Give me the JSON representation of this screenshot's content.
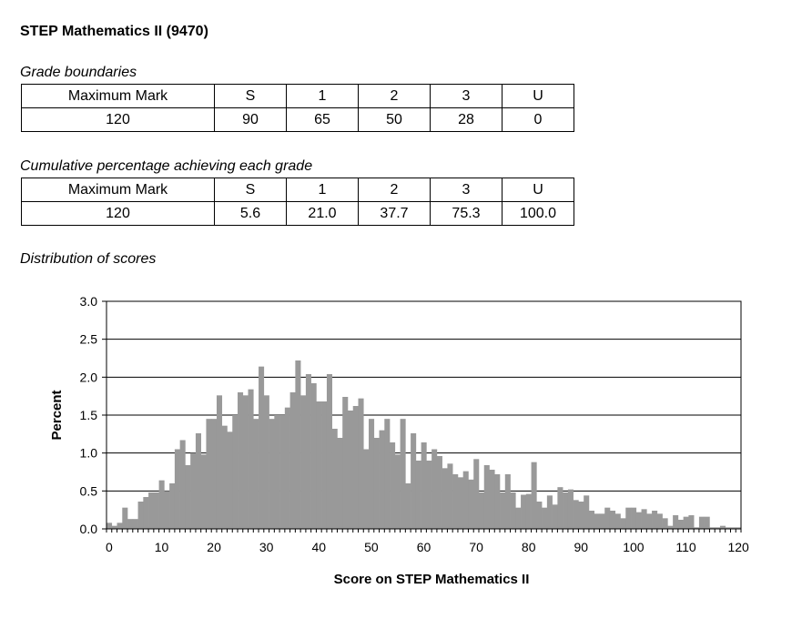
{
  "title": "STEP Mathematics II (9470)",
  "grade_boundaries": {
    "caption": "Grade boundaries",
    "header": [
      "Maximum Mark",
      "S",
      "1",
      "2",
      "3",
      "U"
    ],
    "row": [
      "120",
      "90",
      "65",
      "50",
      "28",
      "0"
    ]
  },
  "cumulative": {
    "caption": "Cumulative percentage achieving each grade",
    "header": [
      "Maximum Mark",
      "S",
      "1",
      "2",
      "3",
      "U"
    ],
    "row": [
      "120",
      "5.6",
      "21.0",
      "37.7",
      "75.3",
      "100.0"
    ]
  },
  "distribution_caption": "Distribution of scores",
  "chart_data": {
    "type": "bar",
    "title": "",
    "xlabel": "Score on STEP Mathematics II",
    "ylabel": "Percent",
    "xlim": [
      0,
      121
    ],
    "ylim": [
      0,
      3.0
    ],
    "xticks": [
      "0",
      "10",
      "20",
      "30",
      "40",
      "50",
      "60",
      "70",
      "80",
      "90",
      "100",
      "110",
      "120"
    ],
    "yticks": [
      "0.0",
      "0.5",
      "1.0",
      "1.5",
      "2.0",
      "2.5",
      "3.0"
    ],
    "grid": "horizontal",
    "bar_color": "#999999",
    "x": [
      0,
      1,
      2,
      3,
      4,
      5,
      6,
      7,
      8,
      9,
      10,
      11,
      12,
      13,
      14,
      15,
      16,
      17,
      18,
      19,
      20,
      21,
      22,
      23,
      24,
      25,
      26,
      27,
      28,
      29,
      30,
      31,
      32,
      33,
      34,
      35,
      36,
      37,
      38,
      39,
      40,
      41,
      42,
      43,
      44,
      45,
      46,
      47,
      48,
      49,
      50,
      51,
      52,
      53,
      54,
      55,
      56,
      57,
      58,
      59,
      60,
      61,
      62,
      63,
      64,
      65,
      66,
      67,
      68,
      69,
      70,
      71,
      72,
      73,
      74,
      75,
      76,
      77,
      78,
      79,
      80,
      81,
      82,
      83,
      84,
      85,
      86,
      87,
      88,
      89,
      90,
      91,
      92,
      93,
      94,
      95,
      96,
      97,
      98,
      99,
      100,
      101,
      102,
      103,
      104,
      105,
      106,
      107,
      108,
      109,
      110,
      111,
      112,
      113,
      114,
      115,
      116,
      117,
      118,
      119,
      120
    ],
    "values": [
      0.08,
      0.04,
      0.08,
      0.28,
      0.13,
      0.13,
      0.36,
      0.42,
      0.48,
      0.48,
      0.64,
      0.5,
      0.6,
      1.05,
      1.17,
      0.84,
      1.0,
      1.26,
      0.98,
      1.45,
      1.45,
      1.76,
      1.36,
      1.28,
      1.5,
      1.8,
      1.76,
      1.84,
      1.45,
      2.14,
      1.76,
      1.45,
      1.5,
      1.5,
      1.6,
      1.8,
      2.22,
      1.76,
      2.04,
      1.92,
      1.68,
      1.68,
      2.04,
      1.32,
      1.2,
      1.74,
      1.56,
      1.62,
      1.72,
      1.05,
      1.45,
      1.2,
      1.3,
      1.45,
      1.14,
      0.98,
      1.45,
      0.6,
      1.26,
      0.9,
      1.14,
      0.9,
      1.05,
      0.96,
      0.8,
      0.86,
      0.72,
      0.68,
      0.76,
      0.65,
      0.92,
      0.48,
      0.84,
      0.78,
      0.72,
      0.48,
      0.72,
      0.48,
      0.28,
      0.45,
      0.46,
      0.88,
      0.36,
      0.28,
      0.44,
      0.32,
      0.55,
      0.48,
      0.52,
      0.38,
      0.36,
      0.44,
      0.24,
      0.2,
      0.2,
      0.28,
      0.24,
      0.2,
      0.14,
      0.28,
      0.28,
      0.22,
      0.26,
      0.2,
      0.24,
      0.2,
      0.14,
      0.04,
      0.18,
      0.12,
      0.16,
      0.18,
      0.02,
      0.16,
      0.16,
      0.02,
      0.02,
      0.04,
      0.02,
      0.02,
      0.02
    ]
  }
}
